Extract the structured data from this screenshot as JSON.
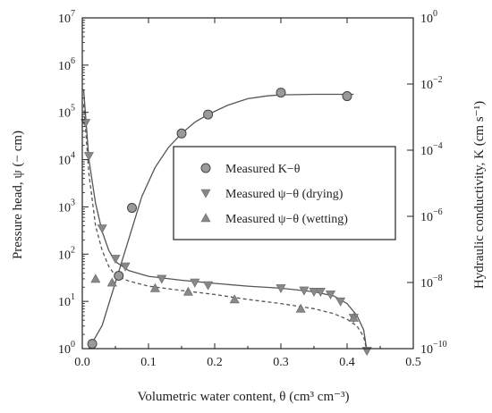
{
  "chart_data": {
    "type": "scatter",
    "xlabel": "Volumetric water content, θ  (cm³ cm⁻³)",
    "ylabel_left": "Pressure head, ψ (− cm)",
    "ylabel_right": "Hydraulic conductivity, K (cm s⁻¹)",
    "xlim": [
      0,
      0.5
    ],
    "ylim_left": [
      1,
      10000000
    ],
    "ylim_right": [
      1e-10,
      1
    ],
    "scale_left": "log",
    "scale_right": "log",
    "x_ticks": [
      "0.0",
      "0.1",
      "0.2",
      "0.3",
      "0.4",
      "0.5"
    ],
    "y_left_ticks": [
      {
        "base": "10",
        "exp": "0"
      },
      {
        "base": "10",
        "exp": "1"
      },
      {
        "base": "10",
        "exp": "2"
      },
      {
        "base": "10",
        "exp": "3"
      },
      {
        "base": "10",
        "exp": "4"
      },
      {
        "base": "10",
        "exp": "5"
      },
      {
        "base": "10",
        "exp": "6"
      },
      {
        "base": "10",
        "exp": "7"
      }
    ],
    "y_right_ticks": [
      {
        "base": "10",
        "exp": "−10"
      },
      {
        "base": "10",
        "exp": "−8"
      },
      {
        "base": "10",
        "exp": "−6"
      },
      {
        "base": "10",
        "exp": "−4"
      },
      {
        "base": "10",
        "exp": "−2"
      },
      {
        "base": "10",
        "exp": "0"
      }
    ],
    "legend_position": "center-right",
    "series": [
      {
        "name": "Measured K−θ",
        "axis": "right",
        "marker": "circle",
        "points": [
          [
            0.015,
            1.4e-10
          ],
          [
            0.055,
            1.6e-08
          ],
          [
            0.075,
            1.8e-06
          ],
          [
            0.15,
            0.00032
          ],
          [
            0.19,
            0.0012
          ],
          [
            0.3,
            0.0055
          ],
          [
            0.4,
            0.0043
          ]
        ]
      },
      {
        "name": "Measured ψ−θ (drying)",
        "axis": "left",
        "marker": "triangle-down",
        "points": [
          [
            0.005,
            60000
          ],
          [
            0.01,
            12000
          ],
          [
            0.03,
            350
          ],
          [
            0.05,
            80
          ],
          [
            0.065,
            55
          ],
          [
            0.12,
            30
          ],
          [
            0.17,
            25
          ],
          [
            0.19,
            22
          ],
          [
            0.3,
            19
          ],
          [
            0.335,
            17
          ],
          [
            0.35,
            16
          ],
          [
            0.36,
            16
          ],
          [
            0.375,
            14
          ],
          [
            0.39,
            10
          ],
          [
            0.41,
            4.5
          ],
          [
            0.43,
            0.9
          ]
        ]
      },
      {
        "name": "Measured ψ−θ (wetting)",
        "axis": "left",
        "marker": "triangle-up",
        "points": [
          [
            0.02,
            30
          ],
          [
            0.045,
            25
          ],
          [
            0.11,
            19
          ],
          [
            0.16,
            16
          ],
          [
            0.23,
            11
          ],
          [
            0.33,
            7
          ],
          [
            0.41,
            4.5
          ]
        ]
      }
    ],
    "fitted_curves": [
      {
        "series": "K fit",
        "axis": "right",
        "style": "solid",
        "points": [
          [
            0.01,
            1e-10
          ],
          [
            0.03,
            5e-10
          ],
          [
            0.05,
            1e-08
          ],
          [
            0.07,
            2e-07
          ],
          [
            0.09,
            4e-06
          ],
          [
            0.11,
            3e-05
          ],
          [
            0.13,
            0.00012
          ],
          [
            0.15,
            0.00032
          ],
          [
            0.17,
            0.0007
          ],
          [
            0.19,
            0.0012
          ],
          [
            0.22,
            0.0023
          ],
          [
            0.25,
            0.0036
          ],
          [
            0.28,
            0.0044
          ],
          [
            0.3,
            0.0047
          ],
          [
            0.35,
            0.0049
          ],
          [
            0.41,
            0.0049
          ]
        ]
      },
      {
        "series": "ψ drying fit",
        "axis": "left",
        "style": "solid",
        "points": [
          [
            0.002,
            300000
          ],
          [
            0.01,
            10000
          ],
          [
            0.02,
            1200
          ],
          [
            0.03,
            300
          ],
          [
            0.04,
            120
          ],
          [
            0.05,
            70
          ],
          [
            0.07,
            45
          ],
          [
            0.1,
            34
          ],
          [
            0.15,
            28
          ],
          [
            0.2,
            24
          ],
          [
            0.25,
            21
          ],
          [
            0.3,
            19
          ],
          [
            0.35,
            16
          ],
          [
            0.38,
            13
          ],
          [
            0.4,
            9
          ],
          [
            0.415,
            5
          ],
          [
            0.425,
            2.5
          ],
          [
            0.43,
            0.9
          ]
        ]
      },
      {
        "series": "ψ wetting fit",
        "axis": "left",
        "style": "dashed",
        "points": [
          [
            0.002,
            150000
          ],
          [
            0.01,
            5000
          ],
          [
            0.02,
            400
          ],
          [
            0.03,
            120
          ],
          [
            0.04,
            55
          ],
          [
            0.05,
            35
          ],
          [
            0.07,
            27
          ],
          [
            0.1,
            21
          ],
          [
            0.15,
            17
          ],
          [
            0.2,
            14
          ],
          [
            0.25,
            11
          ],
          [
            0.3,
            9
          ],
          [
            0.35,
            7
          ],
          [
            0.38,
            5.5
          ],
          [
            0.4,
            4.2
          ],
          [
            0.415,
            3
          ],
          [
            0.425,
            1.8
          ],
          [
            0.43,
            0.9
          ]
        ]
      }
    ]
  }
}
